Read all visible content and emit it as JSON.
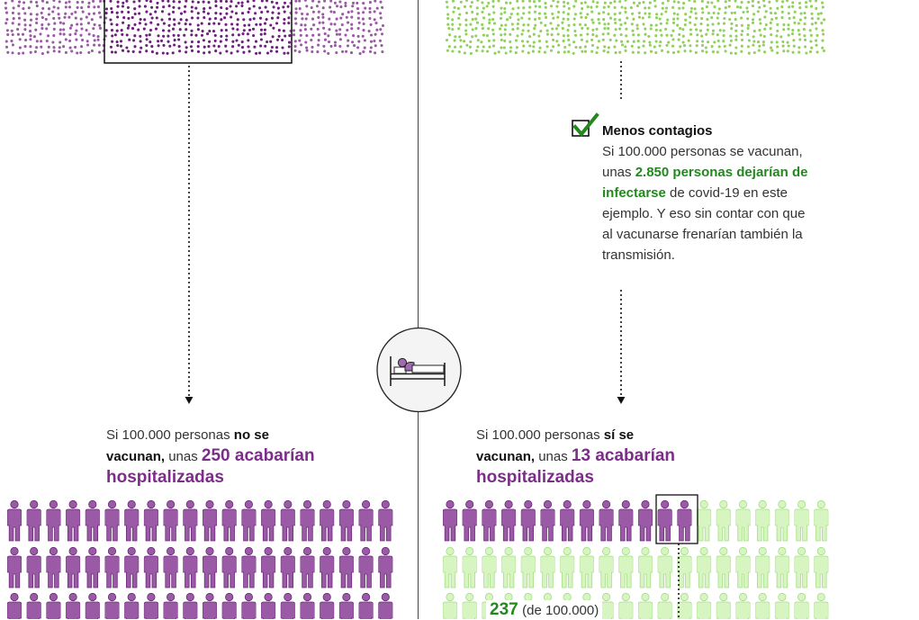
{
  "colors": {
    "purple": "#9b5aa5",
    "purple_dark": "#6f1f7e",
    "green": "#8fd15a",
    "green_light": "#d6f5c0",
    "green_text": "#23891f"
  },
  "icons": [
    "checkbox-check-icon",
    "hospital-bed-icon",
    "person-icon"
  ],
  "note": {
    "title": "Menos contagios",
    "line1": "Si 100.000 personas se vacunan,",
    "line2_prefix": "unas ",
    "line2_bold": "2.850 personas dejarían de",
    "line3_bold": "infectarse",
    "line3_rest": " de covid-19 en este",
    "line4": "ejemplo. Y eso sin contar con que",
    "line5": "al vacunarse frenarían también la",
    "line6": "transmisión."
  },
  "left": {
    "line1_prefix": "Si 100.000 personas ",
    "line1_bold": "no se",
    "line2_bold": "vacunan,",
    "line2_mid": " unas ",
    "line2_highlight": "250 acabarían",
    "line3_highlight": "hospitalizadas"
  },
  "right": {
    "line1_prefix": "Si 100.000 personas ",
    "line1_bold": "sí se",
    "line2_bold": "vacunan,",
    "line2_mid": " unas ",
    "line2_highlight": "13 acabarían",
    "line3_highlight": "hospitalizadas"
  },
  "count": {
    "number": "237",
    "suffix": "(de 100.000)"
  }
}
